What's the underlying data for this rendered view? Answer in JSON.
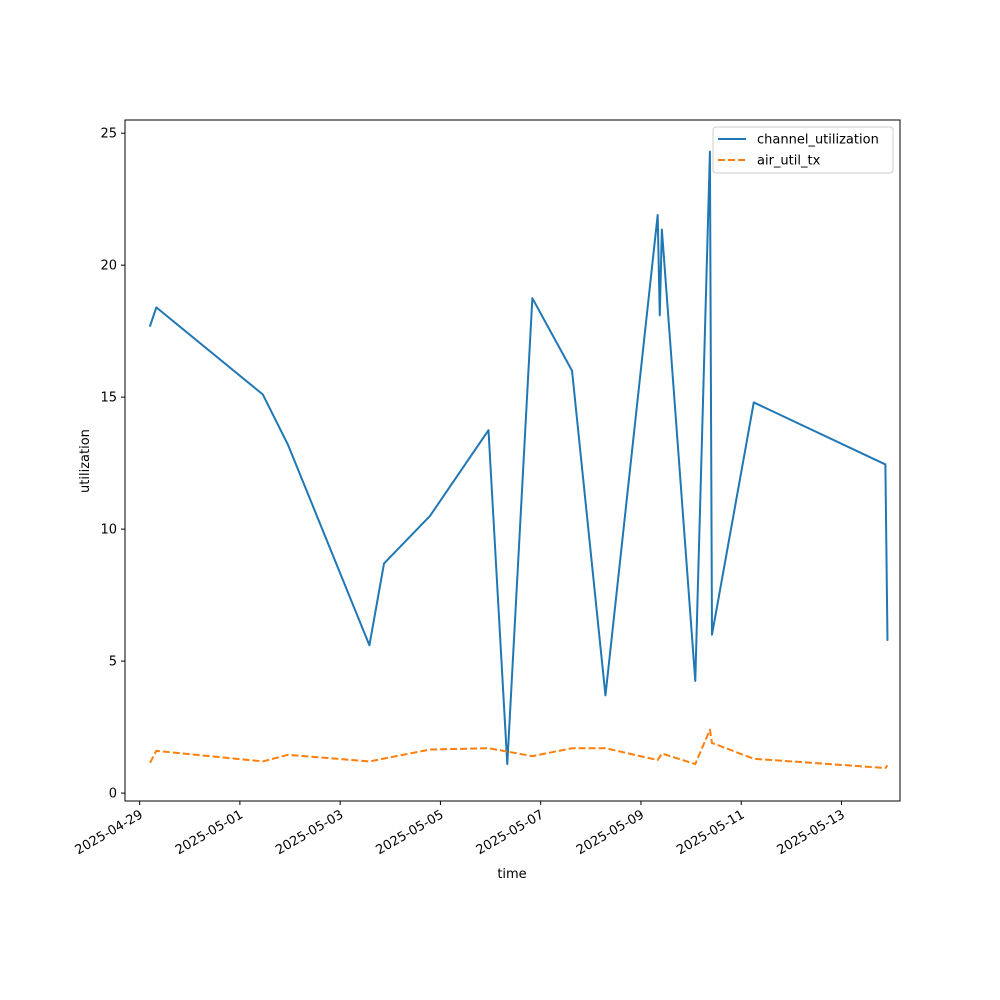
{
  "chart_data": {
    "type": "line",
    "xlabel": "time",
    "ylabel": "utilization",
    "x_ticks": [
      "2025-04-29",
      "2025-05-01",
      "2025-05-03",
      "2025-05-05",
      "2025-05-07",
      "2025-05-09",
      "2025-05-11",
      "2025-05-13"
    ],
    "y_ticks": [
      0,
      5,
      10,
      15,
      20,
      25
    ],
    "xlim": [
      "2025-04-28T17:00",
      "2025-05-14T04:00"
    ],
    "ylim": [
      -0.3,
      25.5
    ],
    "grid": false,
    "legend_position": "upper right",
    "series": [
      {
        "name": "channel_utilization",
        "color": "#1f77b4",
        "style": "solid",
        "points": [
          [
            "2025-04-29T05:00",
            17.7
          ],
          [
            "2025-04-29T08:00",
            18.4
          ],
          [
            "2025-05-01T11:00",
            15.1
          ],
          [
            "2025-05-01T23:00",
            13.2
          ],
          [
            "2025-05-03T14:00",
            5.6
          ],
          [
            "2025-05-03T21:00",
            8.7
          ],
          [
            "2025-05-04T19:00",
            10.5
          ],
          [
            "2025-05-05T23:00",
            13.75
          ],
          [
            "2025-05-06T08:00",
            1.1
          ],
          [
            "2025-05-06T20:00",
            18.75
          ],
          [
            "2025-05-07T15:00",
            16.0
          ],
          [
            "2025-05-08T07:00",
            3.7
          ],
          [
            "2025-05-09T08:00",
            21.9
          ],
          [
            "2025-05-09T09:00",
            18.1
          ],
          [
            "2025-05-09T10:00",
            21.35
          ],
          [
            "2025-05-10T02:00",
            4.25
          ],
          [
            "2025-05-10T09:00",
            24.3
          ],
          [
            "2025-05-10T10:00",
            6.0
          ],
          [
            "2025-05-11T06:00",
            14.8
          ],
          [
            "2025-05-13T21:00",
            12.45
          ],
          [
            "2025-05-13T22:00",
            5.8
          ]
        ]
      },
      {
        "name": "air_util_tx",
        "color": "#ff7f0e",
        "style": "dashed",
        "points": [
          [
            "2025-04-29T05:00",
            1.15
          ],
          [
            "2025-04-29T08:00",
            1.6
          ],
          [
            "2025-05-01T11:00",
            1.2
          ],
          [
            "2025-05-01T23:00",
            1.45
          ],
          [
            "2025-05-03T14:00",
            1.2
          ],
          [
            "2025-05-04T19:00",
            1.65
          ],
          [
            "2025-05-05T23:00",
            1.7
          ],
          [
            "2025-05-06T20:00",
            1.4
          ],
          [
            "2025-05-07T15:00",
            1.7
          ],
          [
            "2025-05-08T07:00",
            1.7
          ],
          [
            "2025-05-09T08:00",
            1.25
          ],
          [
            "2025-05-09T10:00",
            1.5
          ],
          [
            "2025-05-10T02:00",
            1.1
          ],
          [
            "2025-05-10T09:00",
            2.4
          ],
          [
            "2025-05-10T10:00",
            1.9
          ],
          [
            "2025-05-11T06:00",
            1.3
          ],
          [
            "2025-05-13T21:00",
            0.95
          ],
          [
            "2025-05-13T22:00",
            1.05
          ]
        ]
      }
    ]
  }
}
